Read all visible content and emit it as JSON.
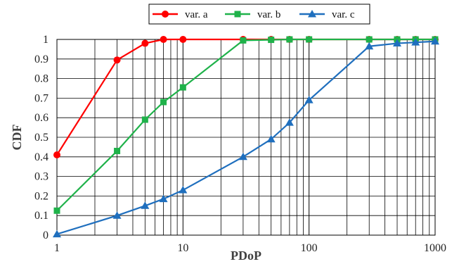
{
  "chart_data": {
    "type": "line",
    "xscale": "log",
    "xlim": [
      1,
      1000
    ],
    "ylim": [
      0,
      1
    ],
    "xlabel": "PDoP",
    "ylabel": "CDF",
    "xticks": [
      "1",
      "10",
      "100",
      "1000"
    ],
    "yticks": [
      "0",
      "0.1",
      "0.2",
      "0.3",
      "0.4",
      "0.5",
      "0.6",
      "0.7",
      "0.8",
      "0.9",
      "1"
    ],
    "grid": true,
    "legend_position": "top",
    "series": [
      {
        "name": "var. a",
        "color": "#ff0000",
        "marker": "circle",
        "points": [
          [
            1,
            0.41
          ],
          [
            3,
            0.895
          ],
          [
            5,
            0.98
          ],
          [
            7,
            1.0
          ],
          [
            10,
            1.0
          ],
          [
            30,
            1.0
          ],
          [
            50,
            1.0
          ],
          [
            70,
            1.0
          ],
          [
            100,
            1.0
          ],
          [
            300,
            1.0
          ],
          [
            500,
            1.0
          ],
          [
            700,
            1.0
          ],
          [
            1000,
            1.0
          ]
        ]
      },
      {
        "name": "var. b",
        "color": "#1fb24a",
        "marker": "square",
        "points": [
          [
            1,
            0.125
          ],
          [
            3,
            0.43
          ],
          [
            5,
            0.59
          ],
          [
            7,
            0.68
          ],
          [
            10,
            0.755
          ],
          [
            30,
            0.995
          ],
          [
            50,
            0.998
          ],
          [
            70,
            1.0
          ],
          [
            100,
            1.0
          ],
          [
            300,
            1.0
          ],
          [
            500,
            1.0
          ],
          [
            700,
            1.0
          ],
          [
            1000,
            1.0
          ]
        ]
      },
      {
        "name": "var. c",
        "color": "#1f6fbe",
        "marker": "triangle",
        "points": [
          [
            1,
            0.005
          ],
          [
            3,
            0.1
          ],
          [
            5,
            0.15
          ],
          [
            7,
            0.185
          ],
          [
            10,
            0.23
          ],
          [
            30,
            0.4
          ],
          [
            50,
            0.49
          ],
          [
            70,
            0.575
          ],
          [
            100,
            0.69
          ],
          [
            300,
            0.965
          ],
          [
            500,
            0.98
          ],
          [
            700,
            0.985
          ],
          [
            1000,
            0.99
          ]
        ]
      }
    ]
  }
}
